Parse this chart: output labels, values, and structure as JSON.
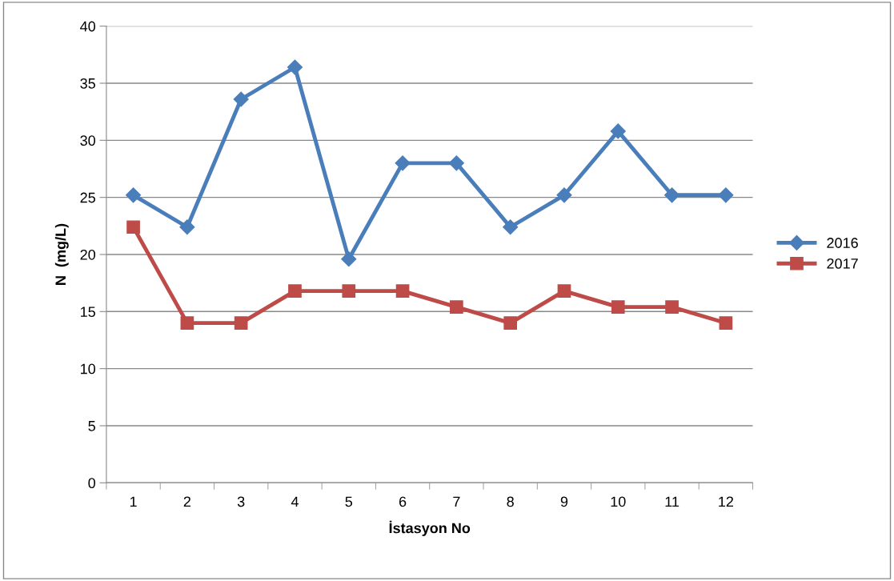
{
  "chart_data": {
    "type": "line",
    "xlabel": "İstasyon No",
    "ylabel": "N  (mg/L)",
    "categories": [
      "1",
      "2",
      "3",
      "4",
      "5",
      "6",
      "7",
      "8",
      "9",
      "10",
      "11",
      "12"
    ],
    "series": [
      {
        "name": "2016",
        "color": "#4a7ebb",
        "marker": "diamond",
        "values": [
          25.2,
          22.4,
          33.6,
          36.4,
          19.6,
          28.0,
          28.0,
          22.4,
          25.2,
          30.8,
          25.2,
          25.2
        ]
      },
      {
        "name": "2017",
        "color": "#be4b48",
        "marker": "square",
        "values": [
          22.4,
          14.0,
          14.0,
          16.8,
          16.8,
          16.8,
          15.4,
          14.0,
          16.8,
          15.4,
          15.4,
          14.0
        ]
      }
    ],
    "ylim": [
      0,
      40
    ],
    "yticks": [
      0,
      5,
      10,
      15,
      20,
      25,
      30,
      35,
      40
    ],
    "grid": "y",
    "legend": "right",
    "line_style": "solid"
  }
}
